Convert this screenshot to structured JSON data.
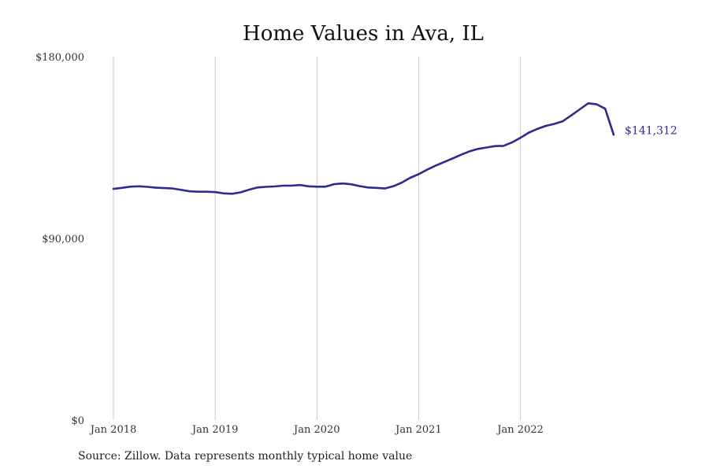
{
  "title": "Home Values in Ava, IL",
  "source_note": "Source: Zillow. Data represents monthly typical home value",
  "colors": {
    "line": "#2e2b8f",
    "grid": "#c8c8c8"
  },
  "chart_data": {
    "type": "line",
    "title": "Home Values in Ava, IL",
    "xlabel": "",
    "ylabel": "",
    "ylim": [
      0,
      180000
    ],
    "y_ticks": [
      {
        "value": 0,
        "label": "$0"
      },
      {
        "value": 90000,
        "label": "$90,000"
      },
      {
        "value": 180000,
        "label": "$180,000"
      }
    ],
    "x_ticks": [
      {
        "index": 0,
        "label": "Jan 2018"
      },
      {
        "index": 12,
        "label": "Jan 2019"
      },
      {
        "index": 24,
        "label": "Jan 2020"
      },
      {
        "index": 36,
        "label": "Jan 2021"
      },
      {
        "index": 48,
        "label": "Jan 2022"
      }
    ],
    "x_range": [
      0,
      59
    ],
    "vertical_grid": true,
    "end_label": "$141,312",
    "series": [
      {
        "name": "",
        "x": [
          "2018-01",
          "2018-02",
          "2018-03",
          "2018-04",
          "2018-05",
          "2018-06",
          "2018-07",
          "2018-08",
          "2018-09",
          "2018-10",
          "2018-11",
          "2018-12",
          "2019-01",
          "2019-02",
          "2019-03",
          "2019-04",
          "2019-05",
          "2019-06",
          "2019-07",
          "2019-08",
          "2019-09",
          "2019-10",
          "2019-11",
          "2019-12",
          "2020-01",
          "2020-02",
          "2020-03",
          "2020-04",
          "2020-05",
          "2020-06",
          "2020-07",
          "2020-08",
          "2020-09",
          "2020-10",
          "2020-11",
          "2020-12",
          "2021-01",
          "2021-02",
          "2021-03",
          "2021-04",
          "2021-05",
          "2021-06",
          "2021-07",
          "2021-08",
          "2021-09",
          "2021-10",
          "2021-11",
          "2021-12",
          "2022-01",
          "2022-02",
          "2022-03",
          "2022-04",
          "2022-05",
          "2022-06",
          "2022-07",
          "2022-08",
          "2022-09",
          "2022-10",
          "2022-11",
          "2022-12"
        ],
        "values": [
          114500,
          115000,
          115600,
          115800,
          115500,
          115100,
          114900,
          114700,
          114000,
          113300,
          113100,
          113100,
          112900,
          112300,
          112100,
          112800,
          114100,
          115200,
          115500,
          115700,
          116100,
          116100,
          116400,
          115800,
          115600,
          115600,
          116800,
          117200,
          116800,
          115900,
          115200,
          115000,
          114700,
          115800,
          117600,
          120000,
          121800,
          124000,
          126000,
          127800,
          129600,
          131400,
          133100,
          134300,
          135000,
          135700,
          135800,
          137500,
          139800,
          142400,
          144200,
          145700,
          146700,
          148000,
          150900,
          153900,
          156900,
          156400,
          154200,
          141312
        ]
      }
    ]
  }
}
